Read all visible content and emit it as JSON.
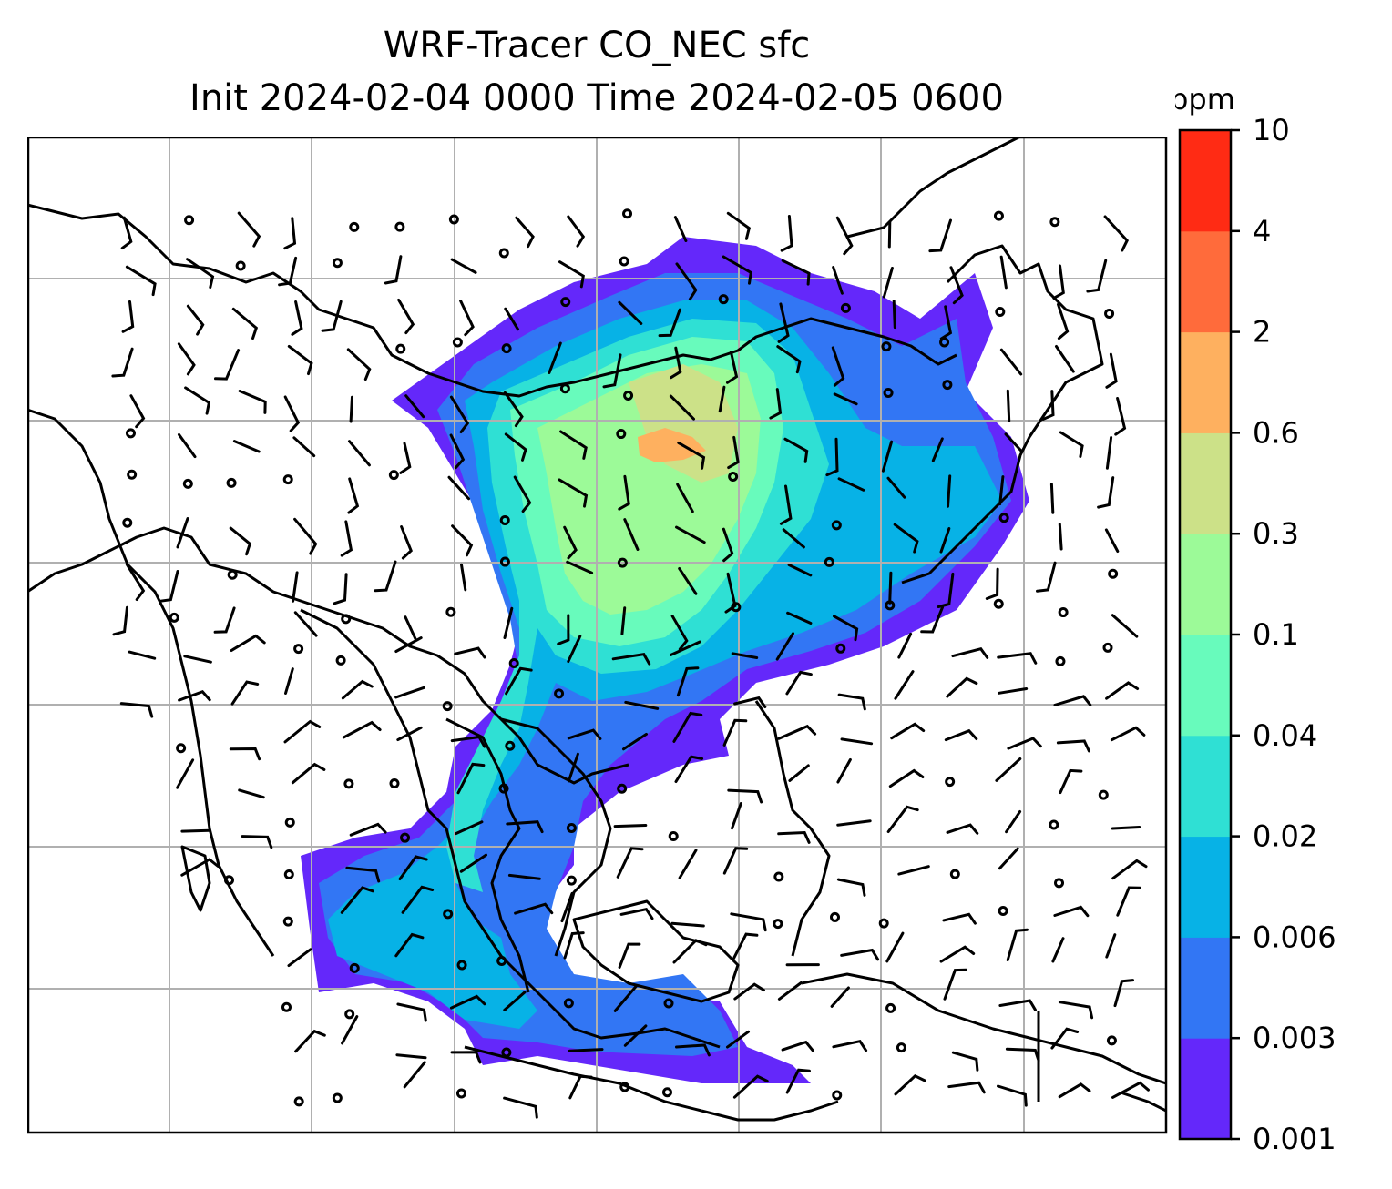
{
  "title": {
    "line1": "WRF-Tracer CO_NEC sfc",
    "line2": "Init 2024-02-04 0000 Time 2024-02-05 0600"
  },
  "colorbar": {
    "unit": "ppm",
    "levels": [
      "0.001",
      "0.003",
      "0.006",
      "0.02",
      "0.04",
      "0.1",
      "0.3",
      "0.6",
      "2",
      "4",
      "10"
    ],
    "colors": [
      "#6428fa",
      "#3276f4",
      "#07b2e6",
      "#2fe0d4",
      "#68fbbc",
      "#9cfa98",
      "#cce188",
      "#feb05f",
      "#ff6b3b",
      "#ff2b14"
    ]
  },
  "map": {
    "field": "CO_NEC tracer concentration (surface)",
    "overlay": "wind barbs and calm-wind circles",
    "coastline_color": "#000000",
    "gridline_color": "#b0b0b0"
  }
}
